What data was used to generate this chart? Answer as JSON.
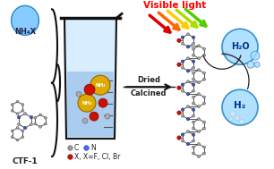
{
  "title": "Visible light",
  "title_color": "#ff0000",
  "bg_color": "#ffffff",
  "nh4x_label": "NH₄X",
  "ctf_label": "CTF-1",
  "dried_label": "Dried\nCalcined",
  "legend_c_label": "C",
  "legend_n_label": "N",
  "legend_x_label": "X, X=F, Cl, Br",
  "legend_c_color": "#999999",
  "legend_n_color": "#4466ff",
  "legend_x_color": "#cc1100",
  "h2o_label": "H₂O",
  "h2_label": "H₂",
  "drop_fc": "#88ccff",
  "drop_ec": "#2288cc",
  "beaker_fc": "#d8eeff",
  "beaker_ec": "#111111",
  "liquid_fc": "#aaccee",
  "arrow_color": "#111111",
  "light_arrow_colors": [
    "#dd0000",
    "#ff6600",
    "#ffcc00",
    "#aadd00",
    "#55cc00"
  ],
  "nh4_sphere_color": "#ddaa00",
  "x_sphere_color": "#cc1100",
  "c_sphere_color": "#aaaaaa",
  "n_atom_color": "#3355cc",
  "ring_bond_color": "#555555",
  "h2o_fc": "#aaddff",
  "h2o_ec": "#2288cc",
  "h2_fc": "#aaddff",
  "h2_ec": "#2288cc",
  "brace_color": "#111111"
}
